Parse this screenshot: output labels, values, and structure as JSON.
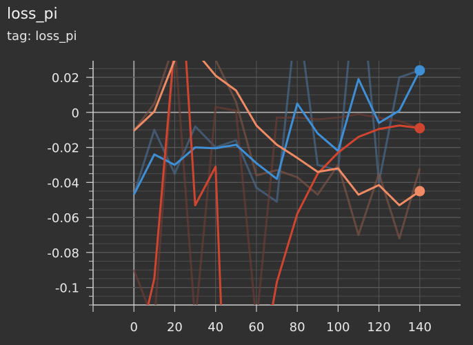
{
  "header": {
    "title": "loss_pi",
    "subtitle": "tag: loss_pi"
  },
  "chart_data": {
    "type": "line",
    "title": "loss_pi",
    "subtitle": "tag: loss_pi",
    "xlabel": "",
    "ylabel": "",
    "xlim": [
      -20,
      160
    ],
    "ylim": [
      -0.11,
      0.0295
    ],
    "x_ticks": [
      0,
      20,
      40,
      60,
      80,
      100,
      120,
      140
    ],
    "x_tick_labels": [
      "0",
      "20",
      "40",
      "60",
      "80",
      "100",
      "120",
      "140"
    ],
    "y_ticks": [
      0.02,
      0,
      -0.02,
      -0.04,
      -0.06,
      -0.08,
      -0.1
    ],
    "y_tick_labels": [
      "0.02",
      "0",
      "-0.02",
      "-0.04",
      "-0.06",
      "-0.08",
      "-0.1"
    ],
    "grid": true,
    "series": [
      {
        "color": "#3f8fd6",
        "raw_color": "#4a6a8c",
        "smoothed": [
          [
            0,
            -0.047
          ],
          [
            10,
            -0.024
          ],
          [
            20,
            -0.03
          ],
          [
            30,
            -0.02
          ],
          [
            40,
            -0.0205
          ],
          [
            50,
            -0.0185
          ],
          [
            60,
            -0.029
          ],
          [
            70,
            -0.038
          ],
          [
            80,
            0.005
          ],
          [
            90,
            -0.012
          ],
          [
            100,
            -0.022
          ],
          [
            110,
            0.019
          ],
          [
            120,
            -0.006
          ],
          [
            130,
            0.001
          ],
          [
            140,
            0.024
          ]
        ],
        "raw": [
          [
            0,
            -0.047
          ],
          [
            10,
            -0.01
          ],
          [
            20,
            -0.035
          ],
          [
            30,
            -0.008
          ],
          [
            40,
            -0.02
          ],
          [
            50,
            -0.016
          ],
          [
            60,
            -0.043
          ],
          [
            70,
            -0.051
          ],
          [
            80,
            0.06
          ],
          [
            90,
            -0.03
          ],
          [
            100,
            -0.033
          ],
          [
            110,
            0.09
          ],
          [
            120,
            -0.04
          ],
          [
            130,
            0.02
          ],
          [
            140,
            0.024
          ]
        ],
        "last_value": 0.024
      },
      {
        "color": "#d0452f",
        "raw_color": "#6b3c34",
        "smoothed": [
          [
            5,
            -0.12
          ],
          [
            10,
            -0.095
          ],
          [
            20,
            0.04
          ],
          [
            25,
            0.04
          ],
          [
            30,
            -0.053
          ],
          [
            40,
            -0.031
          ],
          [
            43,
            -0.12
          ],
          [
            68,
            -0.11
          ],
          [
            70,
            -0.097
          ],
          [
            80,
            -0.058
          ],
          [
            90,
            -0.035
          ],
          [
            100,
            -0.023
          ],
          [
            110,
            -0.014
          ],
          [
            120,
            -0.0095
          ],
          [
            130,
            -0.0075
          ],
          [
            140,
            -0.009
          ]
        ],
        "raw": [
          [
            0,
            -0.09
          ],
          [
            10,
            -0.12
          ],
          [
            20,
            0.04
          ],
          [
            30,
            -0.12
          ],
          [
            40,
            0.003
          ],
          [
            50,
            0.001
          ],
          [
            60,
            -0.12
          ],
          [
            70,
            -0.003
          ],
          [
            80,
            -0.003
          ],
          [
            90,
            -0.004
          ],
          [
            100,
            -0.003
          ],
          [
            110,
            -0.001
          ],
          [
            120,
            -0.003
          ],
          [
            130,
            -0.005
          ],
          [
            140,
            -0.009
          ]
        ],
        "last_value": -0.009
      },
      {
        "color": "#f08b65",
        "raw_color": "#7a5246",
        "smoothed": [
          [
            0,
            -0.0105
          ],
          [
            10,
            0.0005
          ],
          [
            20,
            0.03
          ],
          [
            25,
            0.04
          ],
          [
            30,
            0.035
          ],
          [
            40,
            0.021
          ],
          [
            50,
            0.0125
          ],
          [
            60,
            -0.0075
          ],
          [
            70,
            -0.0185
          ],
          [
            80,
            -0.026
          ],
          [
            90,
            -0.034
          ],
          [
            100,
            -0.032
          ],
          [
            110,
            -0.047
          ],
          [
            120,
            -0.0415
          ],
          [
            130,
            -0.053
          ],
          [
            140,
            -0.045
          ]
        ],
        "raw": [
          [
            0,
            -0.0105
          ],
          [
            10,
            0.005
          ],
          [
            20,
            0.04
          ],
          [
            30,
            0.04
          ],
          [
            40,
            0.03
          ],
          [
            50,
            0.006
          ],
          [
            60,
            -0.036
          ],
          [
            70,
            -0.033
          ],
          [
            80,
            -0.037
          ],
          [
            90,
            -0.047
          ],
          [
            100,
            -0.03
          ],
          [
            110,
            -0.07
          ],
          [
            120,
            -0.035
          ],
          [
            130,
            -0.072
          ],
          [
            140,
            -0.032
          ]
        ],
        "last_value": -0.045
      }
    ]
  }
}
